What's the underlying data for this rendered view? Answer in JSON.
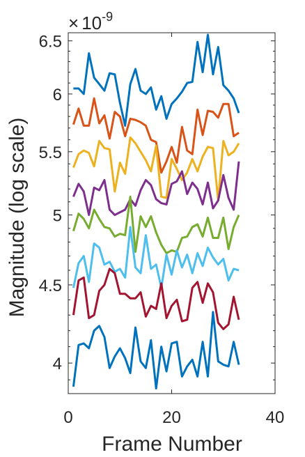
{
  "chart_data": {
    "type": "line",
    "title": "",
    "xlabel": "Frame Number",
    "ylabel": "Magnitude (log scale)",
    "y_scale": "log",
    "y_multiplier": "10",
    "y_multiplier_exponent": "-9",
    "y_multiplier_prefix": "×",
    "xlim": [
      0,
      40
    ],
    "ylim": [
      3.82,
      6.58
    ],
    "xticks": [
      0,
      20,
      40
    ],
    "xtick_labels": [
      "0",
      "20",
      "40"
    ],
    "yticks": [
      4,
      4.5,
      5,
      5.5,
      6,
      6.5
    ],
    "ytick_labels": [
      "4",
      "4.5",
      "5",
      "5.5",
      "6",
      "6.5"
    ],
    "grid": false,
    "legend": "none",
    "x": [
      1,
      2,
      3,
      4,
      5,
      6,
      7,
      8,
      9,
      10,
      11,
      12,
      13,
      14,
      15,
      16,
      17,
      18,
      19,
      20,
      21,
      22,
      23,
      24,
      25,
      26,
      27,
      28,
      29,
      30,
      31,
      32,
      33
    ],
    "series": [
      {
        "color": "#0072BD",
        "values": [
          6.05,
          6.05,
          6.0,
          6.38,
          6.15,
          6.09,
          6.03,
          6.19,
          6.18,
          5.92,
          5.72,
          6.09,
          6.23,
          6.03,
          6.0,
          6.06,
          5.86,
          5.98,
          5.78,
          5.91,
          5.96,
          6.02,
          6.1,
          6.11,
          6.49,
          6.2,
          6.56,
          6.18,
          6.44,
          6.08,
          6.03,
          5.96,
          5.83
        ]
      },
      {
        "color": "#D95319",
        "values": [
          5.73,
          5.87,
          5.72,
          5.72,
          5.96,
          5.74,
          5.81,
          5.61,
          5.84,
          5.8,
          5.63,
          5.78,
          5.77,
          5.75,
          5.72,
          5.6,
          5.58,
          5.33,
          5.42,
          5.54,
          5.41,
          5.71,
          5.51,
          5.48,
          5.86,
          5.64,
          5.85,
          5.84,
          5.79,
          5.91,
          5.91,
          5.63,
          5.66
        ]
      },
      {
        "color": "#EDB120",
        "values": [
          5.37,
          5.48,
          5.51,
          5.49,
          5.38,
          5.59,
          5.53,
          5.52,
          5.18,
          5.41,
          5.32,
          5.62,
          5.57,
          5.5,
          5.43,
          5.34,
          5.55,
          5.14,
          5.13,
          5.44,
          5.36,
          5.27,
          5.33,
          5.44,
          5.34,
          5.46,
          5.54,
          5.53,
          5.11,
          5.59,
          5.47,
          5.5,
          5.57
        ]
      },
      {
        "color": "#7E2F8E",
        "values": [
          5.14,
          5.24,
          5.18,
          5.0,
          5.21,
          5.19,
          5.27,
          5.04,
          5.0,
          5.02,
          5.04,
          5.12,
          5.07,
          5.19,
          5.27,
          5.23,
          5.12,
          5.09,
          5.08,
          5.24,
          5.26,
          5.34,
          5.16,
          5.25,
          5.2,
          5.08,
          5.25,
          5.05,
          5.11,
          5.31,
          5.13,
          5.04,
          5.42
        ]
      },
      {
        "color": "#77AC30",
        "values": [
          4.88,
          5.01,
          4.97,
          4.9,
          5.04,
          4.97,
          4.91,
          4.9,
          4.84,
          4.86,
          4.85,
          5.14,
          4.73,
          4.99,
          4.91,
          4.99,
          4.87,
          4.78,
          4.72,
          4.74,
          4.73,
          4.83,
          4.84,
          4.91,
          4.93,
          4.84,
          4.98,
          4.83,
          4.83,
          4.98,
          4.75,
          4.91,
          5.0
        ]
      },
      {
        "color": "#4DBEEE",
        "values": [
          4.48,
          4.65,
          4.7,
          4.52,
          4.79,
          4.76,
          4.64,
          4.66,
          4.59,
          4.61,
          4.55,
          4.91,
          4.62,
          4.58,
          4.85,
          4.61,
          4.64,
          4.48,
          4.71,
          4.57,
          4.74,
          4.62,
          4.71,
          4.58,
          4.72,
          4.63,
          4.76,
          4.69,
          4.64,
          4.68,
          4.53,
          4.61,
          4.6
        ]
      },
      {
        "color": "#A2142F",
        "values": [
          4.3,
          4.53,
          4.55,
          4.28,
          4.3,
          4.46,
          4.5,
          4.61,
          4.58,
          4.44,
          4.44,
          4.41,
          4.41,
          4.45,
          4.29,
          4.36,
          4.34,
          4.51,
          4.28,
          4.36,
          4.4,
          4.26,
          4.27,
          4.48,
          4.52,
          4.38,
          4.51,
          4.45,
          4.25,
          4.21,
          4.24,
          4.42,
          4.27
        ]
      },
      {
        "color": "#0072BD",
        "values": [
          3.86,
          4.11,
          4.12,
          4.09,
          4.2,
          4.23,
          4.16,
          3.97,
          4.04,
          4.09,
          4.03,
          3.94,
          4.22,
          4.01,
          3.97,
          4.14,
          3.85,
          4.1,
          3.95,
          4.12,
          4.13,
          3.92,
          3.98,
          4.02,
          3.92,
          4.13,
          3.92,
          4.32,
          4.01,
          3.99,
          3.98,
          4.13,
          3.99
        ]
      }
    ]
  }
}
